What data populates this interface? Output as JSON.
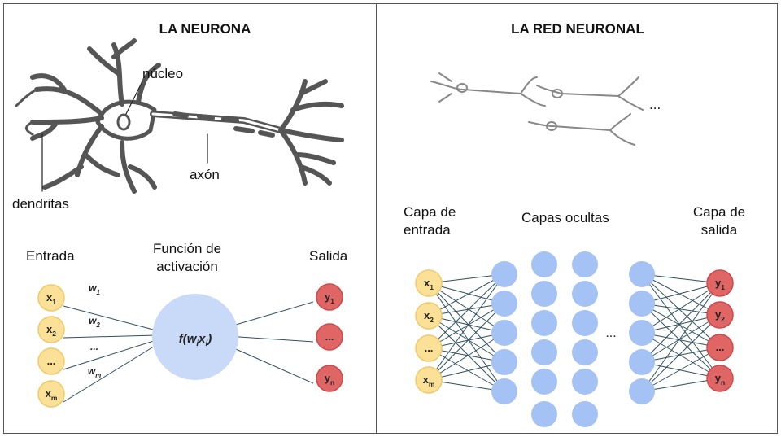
{
  "left_panel": {
    "title": "LA NEURONA",
    "labels": {
      "nucleus": "núcleo",
      "axon": "axón",
      "dendrites": "dendritas"
    },
    "model": {
      "input_heading": "Entrada",
      "activation_heading_line1": "Función de",
      "activation_heading_line2": "activación",
      "output_heading": "Salida",
      "inputs": [
        {
          "base": "x",
          "sub": "1"
        },
        {
          "base": "x",
          "sub": "2"
        },
        {
          "base": "...",
          "sub": ""
        },
        {
          "base": "x",
          "sub": "m"
        }
      ],
      "weights": [
        {
          "base": "w",
          "sub": "1"
        },
        {
          "base": "w",
          "sub": "2"
        },
        {
          "base": "...",
          "sub": ""
        },
        {
          "base": "w",
          "sub": "m"
        }
      ],
      "activation": {
        "f": "f(w",
        "sub1": "i",
        "mid": "x",
        "sub2": "i",
        "end": ")"
      },
      "outputs": [
        {
          "base": "y",
          "sub": "1"
        },
        {
          "base": "...",
          "sub": ""
        },
        {
          "base": "y",
          "sub": "n"
        }
      ]
    }
  },
  "right_panel": {
    "title": "LA RED NEURONAL",
    "ellipsis_top": "...",
    "input_heading_line1": "Capa de",
    "input_heading_line2": "entrada",
    "hidden_heading": "Capas ocultas",
    "output_heading_line1": "Capa de",
    "output_heading_line2": "salida",
    "hidden_ellipsis": "...",
    "inputs": [
      {
        "base": "x",
        "sub": "1"
      },
      {
        "base": "x",
        "sub": "2"
      },
      {
        "base": "...",
        "sub": ""
      },
      {
        "base": "x",
        "sub": "m"
      }
    ],
    "outputs": [
      {
        "base": "y",
        "sub": "1"
      },
      {
        "base": "y",
        "sub": "2"
      },
      {
        "base": "...",
        "sub": ""
      },
      {
        "base": "y",
        "sub": "n"
      }
    ]
  },
  "colors": {
    "input_fill": "#fbe197",
    "input_stroke": "#f0c96a",
    "output_fill": "#e06666",
    "output_stroke": "#c94b4b",
    "hidden_fill": "#a4c2f4",
    "activation_fill": "#c9daf8",
    "connection": "#2f4f5f",
    "neuron_gray": "#555555"
  }
}
